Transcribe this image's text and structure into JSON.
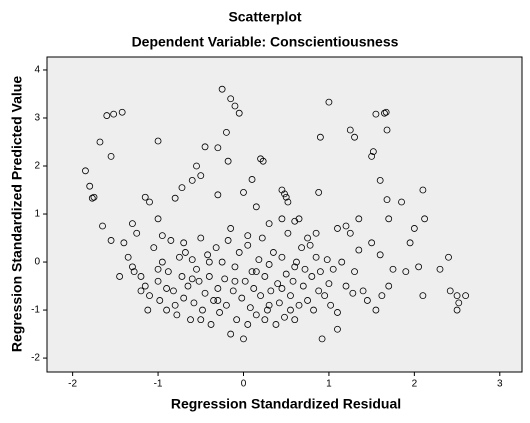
{
  "chart_data": {
    "type": "scatter",
    "title": "Scatterplot",
    "subtitle": "Dependent Variable: Conscientiousness",
    "x_label": "Regression Standardized Residual",
    "y_label": "Regression Standardized Predicted Value",
    "xlim": [
      -2.3,
      3.26
    ],
    "ylim": [
      -2.29,
      4.27
    ],
    "xticks": [
      -2,
      -1,
      0,
      1,
      2,
      3
    ],
    "yticks": [
      -2,
      -1,
      0,
      1,
      2,
      3,
      4
    ],
    "marker_color": "#000000",
    "background": "#eeeeee",
    "x": [
      -1.6,
      -1.52,
      -1.42,
      -1.55,
      -1.68,
      -1.85,
      -1.8,
      -1.75,
      -1.77,
      -1.65,
      -1.0,
      -0.25,
      -0.15,
      -0.1,
      -0.05,
      -0.2,
      -0.45,
      -0.3,
      -0.18,
      0.2,
      0.23,
      -0.55,
      -0.6,
      -0.72,
      -0.5,
      0.1,
      0.0,
      0.45,
      0.48,
      0.5,
      0.52,
      0.15,
      -0.3,
      -0.8,
      -1.15,
      -1.1,
      1.0,
      0.9,
      0.88,
      1.25,
      1.3,
      1.5,
      1.52,
      1.55,
      1.65,
      1.67,
      1.68,
      1.6,
      1.68,
      1.85,
      2.1,
      2.12,
      2.0,
      1.7,
      1.35,
      1.2,
      1.1,
      0.6,
      0.65,
      0.45,
      0.3,
      -1.0,
      -1.4,
      -1.35,
      -1.3,
      -1.28,
      -1.25,
      -1.2,
      -1.15,
      -1.1,
      -1.05,
      -1.0,
      -0.98,
      -0.95,
      -0.9,
      -0.88,
      -0.85,
      -0.82,
      -0.8,
      -0.78,
      -0.75,
      -0.72,
      -0.7,
      -0.68,
      -0.65,
      -0.62,
      -0.6,
      -0.58,
      -0.55,
      -0.52,
      -0.5,
      -0.48,
      -0.45,
      -0.42,
      -0.4,
      -0.38,
      -0.35,
      -0.32,
      -0.3,
      -0.28,
      -0.25,
      -0.22,
      -0.2,
      -0.18,
      -0.15,
      -0.12,
      -0.1,
      -0.08,
      -0.05,
      -0.02,
      0.0,
      0.02,
      0.05,
      0.08,
      0.1,
      0.12,
      0.15,
      0.18,
      0.2,
      0.22,
      0.25,
      0.28,
      0.3,
      0.32,
      0.35,
      0.38,
      0.4,
      0.42,
      0.45,
      0.48,
      0.5,
      0.52,
      0.55,
      0.58,
      0.6,
      0.62,
      0.65,
      0.68,
      0.7,
      0.72,
      0.75,
      0.78,
      0.8,
      0.82,
      0.85,
      0.88,
      0.9,
      0.92,
      0.95,
      0.98,
      1.0,
      1.02,
      1.05,
      1.1,
      1.15,
      1.2,
      1.25,
      1.28,
      1.3,
      1.35,
      1.4,
      1.45,
      1.5,
      1.55,
      1.6,
      1.62,
      1.7,
      1.75,
      1.9,
      1.95,
      2.05,
      2.1,
      2.3,
      2.4,
      2.42,
      2.5,
      2.52,
      2.5,
      2.6,
      -1.45,
      -1.2,
      -1.0,
      -0.9,
      -0.7,
      -0.6,
      -0.4,
      -0.3,
      -0.1,
      0.05,
      0.15,
      0.3,
      0.45,
      0.6,
      0.75,
      -1.55,
      -1.3,
      -0.95,
      -0.15,
      0.05,
      0.85,
      1.1,
      -1.12,
      -0.5,
      0.25,
      0.55
    ],
    "y": [
      3.05,
      3.08,
      3.12,
      2.2,
      2.5,
      1.9,
      1.58,
      1.35,
      1.33,
      0.75,
      2.52,
      3.6,
      3.4,
      3.25,
      3.1,
      2.7,
      2.4,
      2.38,
      2.1,
      2.15,
      2.1,
      2.0,
      1.7,
      1.55,
      1.8,
      1.72,
      1.45,
      1.5,
      1.42,
      1.35,
      1.25,
      1.15,
      1.4,
      1.33,
      1.35,
      1.25,
      3.33,
      2.6,
      1.45,
      2.75,
      2.6,
      2.2,
      2.3,
      3.08,
      3.1,
      3.12,
      2.75,
      1.7,
      1.3,
      1.25,
      1.5,
      0.9,
      0.7,
      0.9,
      0.9,
      0.75,
      0.7,
      0.85,
      0.9,
      0.9,
      0.8,
      0.9,
      0.4,
      0.1,
      -0.1,
      -0.2,
      0.6,
      -0.3,
      -0.5,
      -0.7,
      0.3,
      -0.4,
      -0.8,
      0.0,
      -1.0,
      -0.2,
      0.45,
      -0.6,
      -0.9,
      -1.1,
      0.1,
      -0.3,
      -0.75,
      0.2,
      -0.5,
      -1.2,
      0.05,
      -0.85,
      -0.15,
      -0.4,
      0.5,
      -1.0,
      -0.65,
      0.15,
      -0.3,
      -1.3,
      -0.8,
      0.3,
      -0.55,
      -1.05,
      0.0,
      -0.35,
      -0.9,
      0.45,
      -1.5,
      -0.6,
      -0.1,
      -1.2,
      0.2,
      -0.75,
      -1.6,
      -0.4,
      0.35,
      -0.95,
      -0.2,
      -0.55,
      -1.1,
      0.05,
      -0.7,
      0.5,
      -0.3,
      -1.0,
      -0.05,
      -0.6,
      0.2,
      -1.3,
      -0.45,
      -0.85,
      0.1,
      -1.15,
      -0.25,
      0.6,
      -0.7,
      -0.4,
      -1.2,
      0.0,
      -0.9,
      0.3,
      -0.5,
      -0.15,
      -0.8,
      0.35,
      -0.3,
      -1.0,
      0.1,
      -0.6,
      -0.2,
      -1.6,
      -0.7,
      0.05,
      -0.45,
      -0.9,
      -0.15,
      -1.4,
      0.0,
      -0.5,
      0.6,
      -0.65,
      -0.2,
      0.25,
      -0.6,
      -0.8,
      0.4,
      -1.0,
      0.15,
      -0.7,
      -0.5,
      -0.15,
      -0.2,
      0.4,
      -0.1,
      -0.7,
      -0.15,
      0.1,
      -0.6,
      -0.7,
      -0.85,
      -1.0,
      -0.7,
      -0.3,
      -0.6,
      -0.15,
      -0.55,
      0.4,
      -0.35,
      0.0,
      -0.8,
      -0.4,
      -1.3,
      -0.2,
      -0.9,
      -0.55,
      -0.1,
      0.5,
      0.45,
      0.8,
      0.55,
      0.7,
      0.55,
      0.6,
      -1.05,
      -1.0,
      -1.2,
      -1.2,
      -1.0
    ]
  }
}
